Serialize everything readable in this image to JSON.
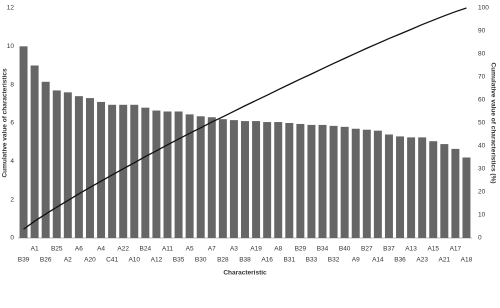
{
  "chart_data": {
    "type": "pareto",
    "x_label": "Characteristic",
    "y_label": "Cumulative value of characteristics",
    "y2_label": "Cumulative value of characteristics (%)",
    "categories": [
      "B39",
      "A1",
      "B26",
      "B25",
      "A2",
      "A6",
      "A20",
      "A4",
      "C41",
      "A22",
      "A10",
      "B24",
      "A12",
      "A11",
      "B35",
      "A5",
      "B30",
      "A7",
      "B28",
      "A3",
      "B38",
      "A19",
      "A16",
      "A8",
      "B31",
      "B29",
      "B33",
      "B34",
      "B32",
      "B40",
      "A9",
      "B27",
      "A14",
      "B37",
      "B36",
      "A13",
      "A23",
      "A15",
      "A21",
      "A17",
      "A18"
    ],
    "series": [
      {
        "type": "bar",
        "color": "#666666",
        "values": [
          10,
          9,
          8.15,
          7.7,
          7.6,
          7.4,
          7.3,
          7.1,
          6.95,
          6.95,
          6.95,
          6.8,
          6.65,
          6.6,
          6.6,
          6.45,
          6.35,
          6.3,
          6.2,
          6.15,
          6.1,
          6.1,
          6.05,
          6.05,
          6.0,
          5.95,
          5.9,
          5.9,
          5.85,
          5.8,
          5.7,
          5.65,
          5.6,
          5.4,
          5.3,
          5.25,
          5.25,
          5.05,
          4.9,
          4.65,
          4.2
        ]
      },
      {
        "type": "line",
        "axis": "y2",
        "color": "#111111",
        "values": [
          3.8,
          7.3,
          10.4,
          13.4,
          16.3,
          19.2,
          22.0,
          24.7,
          27.4,
          30.1,
          32.7,
          35.4,
          37.9,
          40.5,
          43.0,
          45.5,
          47.9,
          50.4,
          52.7,
          55.1,
          57.5,
          59.8,
          62.1,
          64.5,
          66.8,
          69.1,
          71.3,
          73.6,
          75.9,
          78.1,
          80.3,
          82.5,
          84.6,
          86.7,
          88.7,
          90.7,
          92.8,
          94.7,
          96.6,
          98.4,
          100
        ]
      }
    ],
    "ylim": [
      0,
      12
    ],
    "yticks": [
      0,
      2,
      4,
      6,
      8,
      10,
      12
    ],
    "y2lim": [
      0,
      100
    ],
    "y2ticks": [
      0,
      10,
      20,
      30,
      40,
      50,
      60,
      70,
      80,
      90,
      100
    ],
    "grid": false
  }
}
